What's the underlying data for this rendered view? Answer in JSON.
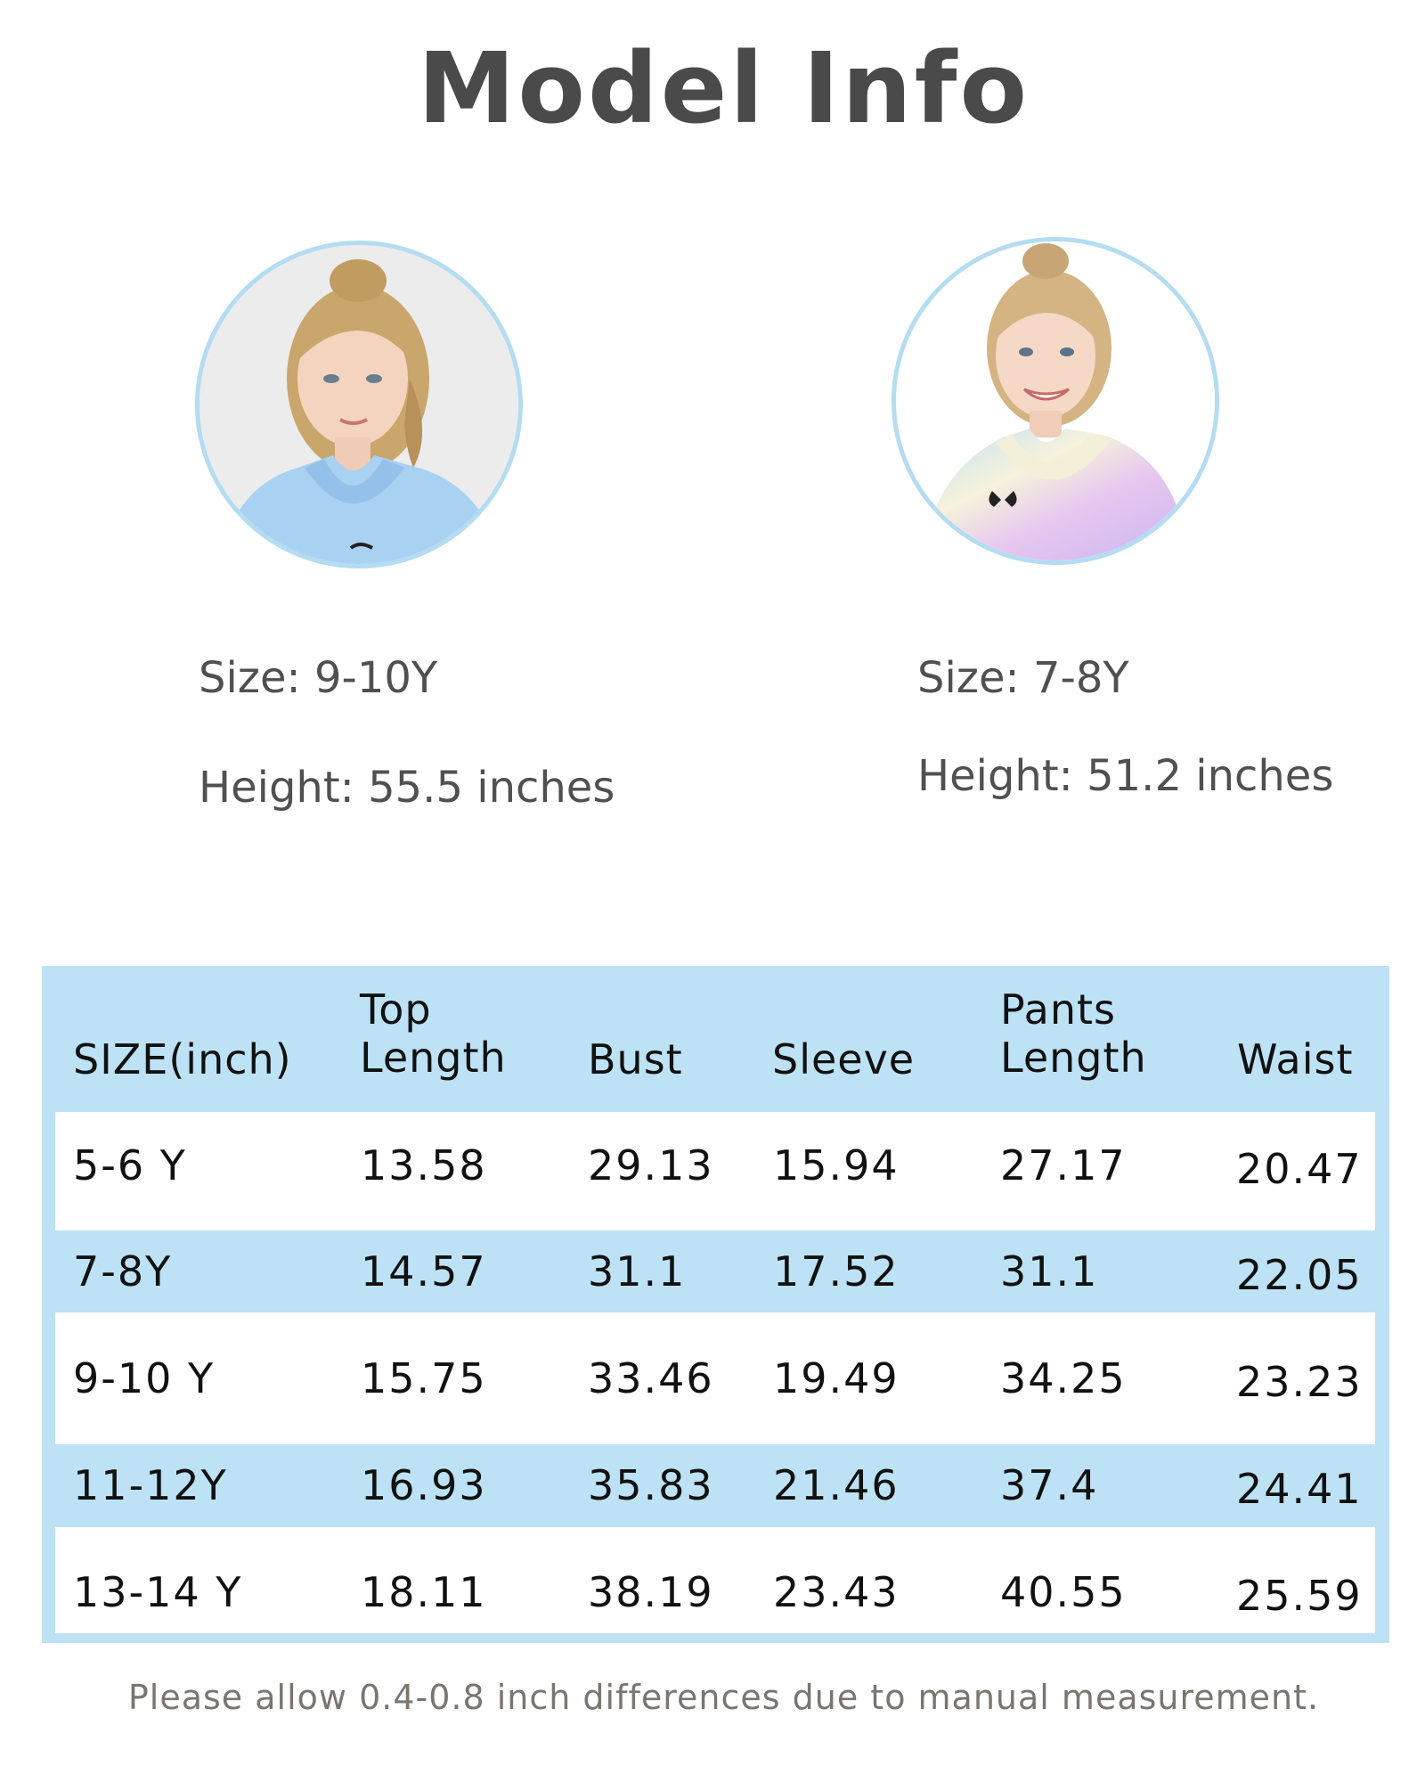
{
  "title": "Model Info",
  "models": [
    {
      "size": "Size: 9-10Y",
      "height": "Height: 55.5 inches"
    },
    {
      "size": "Size: 7-8Y",
      "height": "Height: 51.2 inches"
    }
  ],
  "table": {
    "headers": [
      "SIZE(inch)",
      "Top\nLength",
      "Bust",
      "Sleeve",
      "Pants\nLength",
      "Waist"
    ],
    "rows": [
      [
        "5-6 Y",
        "13.58",
        "29.13",
        "15.94",
        "27.17",
        "20.47"
      ],
      [
        "7-8Y",
        "14.57",
        "31.1",
        "17.52",
        "31.1",
        "22.05"
      ],
      [
        "9-10 Y",
        "15.75",
        "33.46",
        "19.49",
        "34.25",
        "23.23"
      ],
      [
        "11-12Y",
        "16.93",
        "35.83",
        "21.46",
        "37.4",
        "24.41"
      ],
      [
        "13-14 Y",
        "18.11",
        "38.19",
        "23.43",
        "40.55",
        "25.59"
      ]
    ]
  },
  "note": "Please allow 0.4-0.8 inch differences due to manual measurement.",
  "colors": {
    "title": "#4a4a4a",
    "table_bg": "#bde2f5",
    "avatar_border": "#b4dcf2",
    "note": "#7a7570"
  }
}
